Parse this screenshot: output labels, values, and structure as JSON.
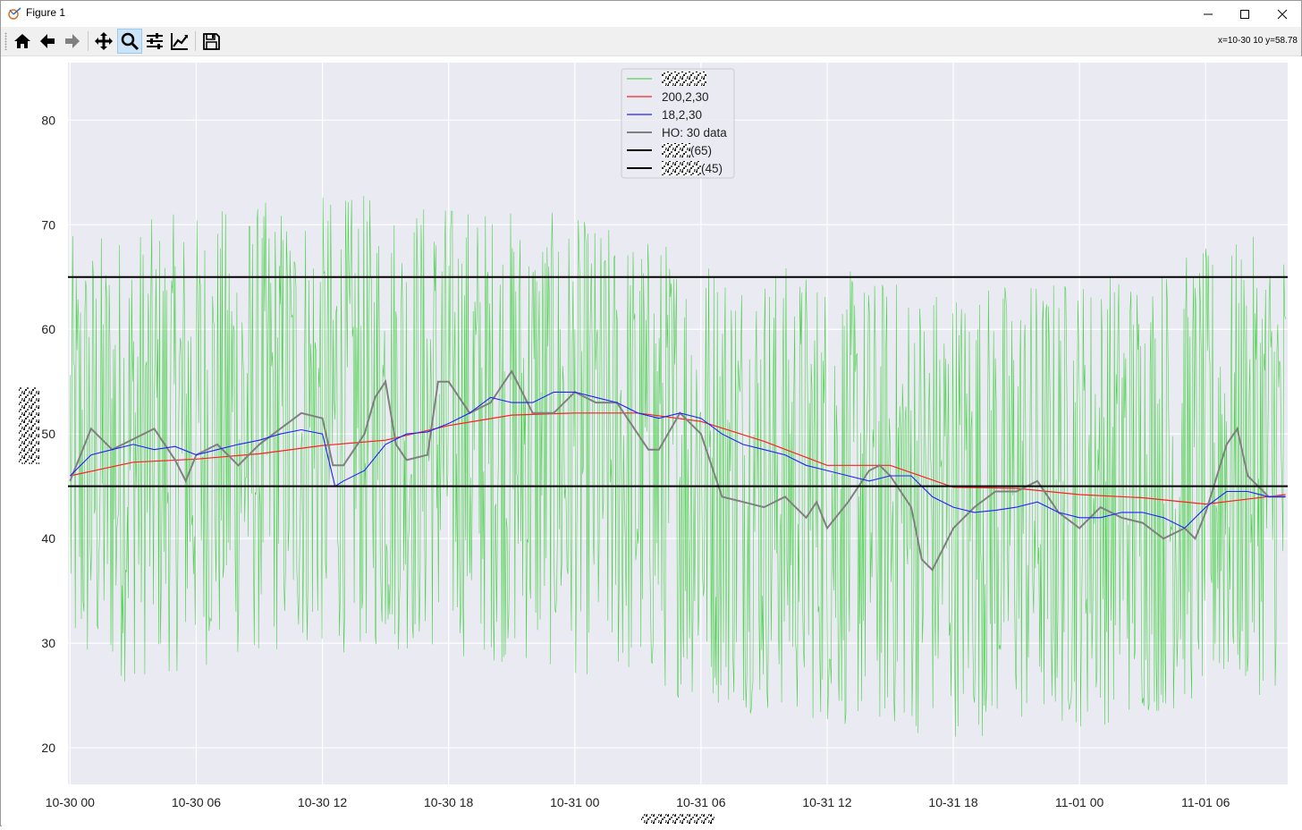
{
  "window": {
    "title": "Figure 1",
    "controls": [
      "minimize",
      "maximize",
      "close"
    ]
  },
  "toolbar": {
    "tools": [
      {
        "name": "home",
        "icon": "home-icon",
        "active": false
      },
      {
        "name": "back",
        "icon": "arrow-left-icon",
        "active": false
      },
      {
        "name": "forward",
        "icon": "arrow-right-icon",
        "active": false
      },
      {
        "name": "pan",
        "icon": "move-icon",
        "active": false
      },
      {
        "name": "zoom",
        "icon": "zoom-icon",
        "active": true
      },
      {
        "name": "subplots",
        "icon": "sliders-icon",
        "active": false
      },
      {
        "name": "edit-axis",
        "icon": "line-chart-icon",
        "active": false
      },
      {
        "name": "save",
        "icon": "floppy-icon",
        "active": false
      }
    ],
    "coordinates": "x=10-30 10 y=58.78"
  },
  "chart_data": {
    "type": "line",
    "title": "",
    "xlabel": "",
    "ylabel": "",
    "ylim": [
      16.5,
      85.5
    ],
    "xlim_hours": [
      -0.1,
      57.9
    ],
    "x_ticks": [
      "10-30 00",
      "10-30 06",
      "10-30 12",
      "10-30 18",
      "10-31 00",
      "10-31 06",
      "10-31 12",
      "10-31 18",
      "11-01 00",
      "11-01 06"
    ],
    "y_ticks": [
      20,
      30,
      40,
      50,
      60,
      70,
      80
    ],
    "grid": true,
    "background": "#eaeaf2",
    "legend": {
      "placement": "top-center"
    },
    "hlines": [
      {
        "label": "(65)",
        "y": 65,
        "color": "#000000"
      },
      {
        "label": " (45)",
        "y": 45,
        "color": "#000000"
      }
    ],
    "series": [
      {
        "name": "",
        "color": "#33cc33",
        "style": "noisy",
        "note_values": "oscillates roughly between 20 and 80"
      },
      {
        "name": "200,2,30",
        "color": "#ff2020",
        "x": [
          0,
          3,
          6,
          9,
          12,
          15,
          18,
          21,
          24,
          27,
          30,
          33,
          36,
          39,
          42,
          45,
          48,
          51,
          54,
          57.8
        ],
        "values": [
          46.0,
          47.3,
          47.6,
          48.1,
          48.9,
          49.4,
          50.8,
          51.8,
          52.0,
          52.0,
          51.2,
          49.3,
          47.0,
          47.0,
          44.9,
          44.8,
          44.2,
          43.9,
          43.3,
          44.2
        ]
      },
      {
        "name": "18,2,30",
        "color": "#2020ff",
        "x": [
          0,
          1,
          2,
          3,
          4,
          5,
          6,
          7,
          8,
          9,
          10,
          11,
          12,
          12.6,
          13,
          14,
          15,
          16,
          17,
          18,
          19,
          20,
          21,
          22,
          23,
          24,
          25,
          26,
          27,
          28,
          29,
          30,
          31,
          32,
          33,
          34,
          35,
          36,
          37,
          38,
          39,
          40,
          41,
          42,
          43,
          44,
          45,
          46,
          47,
          48,
          49,
          50,
          51,
          52,
          53,
          54,
          55,
          56,
          57,
          57.8
        ],
        "values": [
          46.0,
          48.0,
          48.5,
          49.0,
          48.5,
          48.8,
          48.0,
          48.5,
          49.0,
          49.4,
          50.0,
          50.4,
          50.0,
          45.0,
          45.5,
          46.5,
          49.0,
          50.0,
          50.2,
          51.0,
          52.0,
          53.5,
          53.0,
          53.0,
          54.0,
          54.0,
          53.5,
          53.0,
          52.0,
          51.5,
          52.0,
          51.5,
          50.0,
          49.0,
          48.5,
          48.0,
          47.0,
          46.5,
          46.0,
          45.5,
          46.0,
          46.0,
          44.0,
          43.0,
          42.5,
          42.7,
          43.0,
          43.5,
          42.5,
          42.0,
          42.0,
          42.5,
          42.5,
          42.0,
          41.0,
          43.0,
          44.5,
          44.5,
          44.0,
          44.0
        ]
      },
      {
        "name": "HO: 30 data",
        "color": "#808080",
        "x": [
          0,
          1,
          2,
          3,
          4,
          5,
          5.5,
          6,
          7,
          8,
          9,
          10,
          11,
          12,
          12.5,
          13,
          14,
          14.5,
          15,
          15.5,
          16,
          17,
          17.5,
          18,
          19,
          20,
          21,
          22,
          23,
          24,
          25,
          26,
          26.5,
          27,
          27.5,
          28,
          29,
          30,
          31,
          32,
          33,
          34,
          35,
          35.5,
          36,
          37,
          38,
          38.5,
          39,
          40,
          40.5,
          41,
          42,
          43,
          44,
          45,
          46,
          47,
          48,
          49,
          50,
          51,
          52,
          53,
          53.5,
          54,
          55,
          55.5,
          56,
          57,
          57.8
        ],
        "values": [
          45.5,
          50.5,
          48.5,
          49.5,
          50.5,
          47.5,
          45.5,
          48.0,
          49.0,
          47.0,
          49.0,
          50.5,
          52.0,
          51.5,
          47.0,
          47.0,
          50.0,
          53.5,
          55.0,
          49.0,
          47.5,
          48.0,
          55.0,
          55.0,
          52.0,
          53.0,
          56.0,
          52.0,
          52.0,
          54.0,
          53.0,
          53.0,
          51.5,
          50.0,
          48.5,
          48.5,
          52.0,
          50.0,
          44.0,
          43.5,
          43.0,
          44.0,
          42.0,
          43.5,
          41.0,
          43.5,
          46.5,
          47.0,
          46.0,
          43.0,
          38.0,
          37.0,
          41.0,
          43.0,
          44.5,
          44.5,
          45.5,
          42.5,
          41.0,
          43.0,
          42.0,
          41.5,
          40.0,
          41.0,
          40.0,
          42.5,
          49.0,
          50.5,
          46.0,
          44.0,
          44.0
        ]
      },
      {
        "name": "(65)",
        "color": "#000000"
      },
      {
        "name": " (45)",
        "color": "#000000"
      }
    ]
  }
}
